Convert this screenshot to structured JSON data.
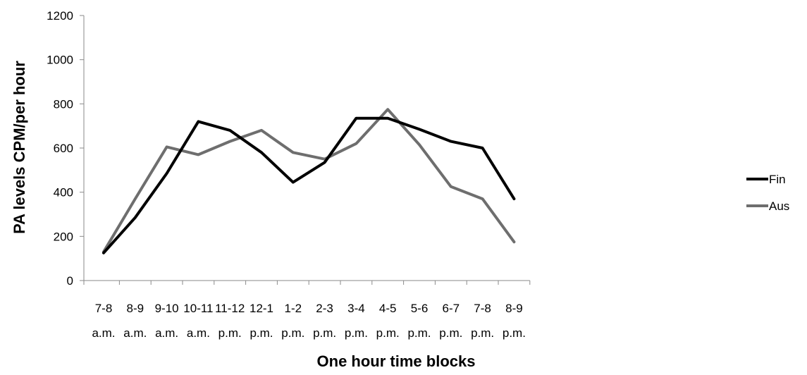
{
  "chart_data": {
    "type": "line",
    "xlabel": "One hour time blocks",
    "ylabel": "PA levels CPM/per hour",
    "ylim": [
      0,
      1200
    ],
    "yticks": [
      0,
      200,
      400,
      600,
      800,
      1000,
      1200
    ],
    "grid": false,
    "legend_position": "right",
    "categories": [
      [
        "7-8",
        "a.m."
      ],
      [
        "8-9",
        "a.m."
      ],
      [
        "9-10",
        "a.m."
      ],
      [
        "10-11",
        "a.m."
      ],
      [
        "11-12",
        "p.m."
      ],
      [
        "12-1",
        "p.m."
      ],
      [
        "1-2",
        "p.m."
      ],
      [
        "2-3",
        "p.m."
      ],
      [
        "3-4",
        "p.m."
      ],
      [
        "4-5",
        "p.m."
      ],
      [
        "5-6",
        "p.m."
      ],
      [
        "6-7",
        "p.m."
      ],
      [
        "7-8",
        "p.m."
      ],
      [
        "8-9",
        "p.m."
      ]
    ],
    "series": [
      {
        "name": "Fin",
        "color": "#000000",
        "values": [
          125,
          285,
          485,
          720,
          680,
          580,
          445,
          535,
          735,
          735,
          685,
          630,
          600,
          370
        ]
      },
      {
        "name": "Aus",
        "color": "#6e6e6e",
        "values": [
          130,
          370,
          605,
          570,
          630,
          680,
          580,
          550,
          620,
          775,
          615,
          425,
          370,
          175
        ]
      }
    ]
  }
}
